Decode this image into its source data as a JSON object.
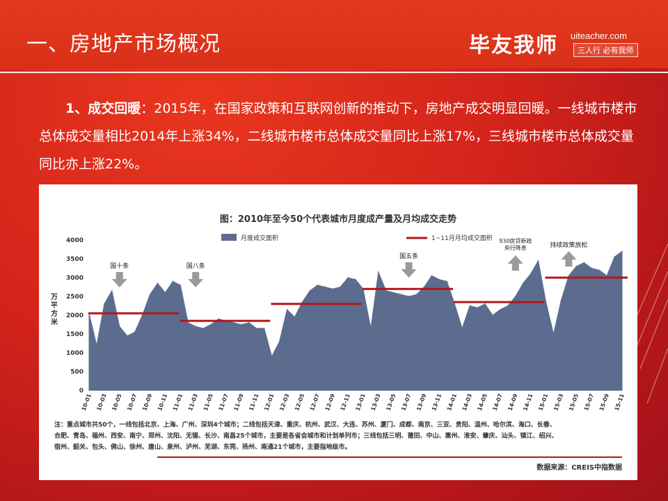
{
  "header": {
    "title": "一、房地产市场概况",
    "logo_cn": "毕友我师",
    "logo_url": "uiteacher.com",
    "logo_slogan": "三人行 必有我师"
  },
  "intro": {
    "lead": "1、成交回暖",
    "colon": "：",
    "text": "2015年，在国家政策和互联网创新的推动下，房地产成交明显回暖。一线城市楼市总体成交量相比2014年上涨34%，二线城市楼市总体成交量同比上涨17%，三线城市楼市总体成交量同比亦上涨22%。"
  },
  "colors": {
    "area": "#5b6c8e",
    "avg_line": "#b3161a",
    "arrow": "#9a9a9a"
  },
  "chart_data": {
    "type": "area",
    "title": "图：2010年至今50个代表城市月度成产量及月均成交走势",
    "ylabel": "万平方米",
    "ylim": [
      0,
      4000
    ],
    "yticks": [
      0,
      500,
      1000,
      1500,
      2000,
      2500,
      3000,
      3500,
      4000
    ],
    "x_tick_labels": [
      "10-01",
      "10-03",
      "10-05",
      "10-07",
      "10-09",
      "10-11",
      "11-01",
      "11-03",
      "11-05",
      "11-07",
      "11-09",
      "11-11",
      "12-01",
      "12-03",
      "12-05",
      "12-07",
      "12-09",
      "12-11",
      "13-01",
      "13-03",
      "13-05",
      "13-07",
      "13-09",
      "13-11",
      "14-01",
      "14-03",
      "14-05",
      "14-07",
      "14-09",
      "14-11",
      "15-01",
      "15-03",
      "15-05",
      "15-07",
      "15-09",
      "15-11"
    ],
    "legend": {
      "series": "月度成交面积",
      "avg": "1~11月月均成交面积"
    },
    "series": [
      {
        "name": "月度成交面积",
        "values": [
          2050,
          1200,
          2300,
          2650,
          1700,
          1450,
          1550,
          2000,
          2550,
          2850,
          2600,
          2900,
          2800,
          1800,
          1700,
          1650,
          1750,
          1900,
          1850,
          1800,
          1750,
          1800,
          1650,
          1650,
          900,
          1300,
          2150,
          1950,
          2350,
          2650,
          2800,
          2750,
          2700,
          2750,
          3000,
          2950,
          2700,
          1650,
          3150,
          2650,
          2600,
          2550,
          2500,
          2550,
          2750,
          3050,
          2950,
          2900,
          2300,
          1650,
          2250,
          2200,
          2300,
          2000,
          2150,
          2250,
          2500,
          2850,
          3100,
          3450,
          2350,
          1500,
          2400,
          3050,
          3300,
          3400,
          3250,
          3200,
          3050,
          3550,
          3700
        ]
      }
    ],
    "annual_avg": [
      {
        "year": "2010",
        "value": 2050
      },
      {
        "year": "2011",
        "value": 1850
      },
      {
        "year": "2012",
        "value": 2300
      },
      {
        "year": "2013",
        "value": 2700
      },
      {
        "year": "2014",
        "value": 2350
      },
      {
        "year": "2015",
        "value": 3000
      }
    ],
    "annotations": [
      {
        "label": "国十条",
        "direction": "down"
      },
      {
        "label": "国八条",
        "direction": "down"
      },
      {
        "label": "国五条",
        "direction": "down"
      },
      {
        "label": "930房贷新政央行降息",
        "line1": "930房贷新政",
        "line2": "央行降息",
        "direction": "up"
      },
      {
        "label": "持续政策放松",
        "direction": "up"
      }
    ],
    "note_lines": [
      "注：重点城市共50个，一线包括北京、上海、广州、深圳4个城市；二线包括天津、重庆、杭州、武汉、大连、苏州、厦门、成都、南京、三亚、贵阳、温州、哈尔滨、海口、长春、",
      "合肥、青岛、福州、西安、南宁、郑州、沈阳、无锡、长沙、南昌25个城市，主要是各省会城市和计划单列市；三线包括三明、莆田、中山、惠州、淮安、肇庆、汕头、镇江、绍兴、",
      "宿州、韶关、包头、佛山、徐州、唐山、泉州、泸州、芜湖、东莞、扬州、南通21个城市，主要指地级市。"
    ],
    "source": "数据来源：CREIS中指数据"
  }
}
